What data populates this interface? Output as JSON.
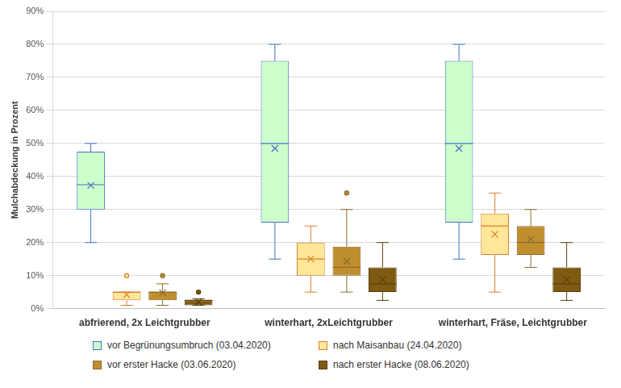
{
  "chart_data": {
    "type": "boxplot",
    "y_label": "Mulchabdeckung in Prozent",
    "categories": [
      "abfrierend, 2x Leichtgrubber",
      "winterhart, 2xLeichtgrubber",
      "winterhart, Fräse, Leichtgrubber"
    ],
    "ylim": [
      0,
      90
    ],
    "yticks": [
      {
        "value": 0,
        "label": "0%"
      },
      {
        "value": 10,
        "label": "10%"
      },
      {
        "value": 20,
        "label": "20%"
      },
      {
        "value": 30,
        "label": "30%"
      },
      {
        "value": 40,
        "label": "40%"
      },
      {
        "value": 50,
        "label": "50%"
      },
      {
        "value": 60,
        "label": "60%"
      },
      {
        "value": 70,
        "label": "70%"
      },
      {
        "value": 80,
        "label": "80%"
      },
      {
        "value": 90,
        "label": "90%"
      }
    ],
    "grid": true,
    "legend": "bottom",
    "series": [
      {
        "name": "vor Begrünungsumbruch (03.04.2020)",
        "color": "#ccffcc",
        "values": [
          {
            "min": 20,
            "q1": 30,
            "median": 37.5,
            "q3": 47.5,
            "max": 50,
            "mean": 37.3,
            "outliers": []
          },
          {
            "min": 15,
            "q1": 26,
            "median": 50,
            "q3": 75,
            "max": 80,
            "mean": 48.5,
            "outliers": []
          },
          {
            "min": 15,
            "q1": 26,
            "median": 50,
            "q3": 75,
            "max": 80,
            "mean": 48.5,
            "outliers": []
          }
        ]
      },
      {
        "name": "nach Maisanbau (24.04.2020)",
        "color": "#ffe699",
        "values": [
          {
            "min": 1,
            "q1": 2.5,
            "median": 5,
            "q3": 5,
            "max": 5,
            "mean": 4.2,
            "outliers": [
              10
            ]
          },
          {
            "min": 5,
            "q1": 10,
            "median": 15,
            "q3": 20,
            "max": 25,
            "mean": 15,
            "outliers": []
          },
          {
            "min": 5,
            "q1": 16.25,
            "median": 25,
            "q3": 28.75,
            "max": 35,
            "mean": 22.5,
            "outliers": []
          }
        ]
      },
      {
        "name": "vor erster Hacke (03.06.2020)",
        "color": "#bf8f2e",
        "values": [
          {
            "min": 1,
            "q1": 2.5,
            "median": 5,
            "q3": 5,
            "max": 7.5,
            "mean": 4.8,
            "outliers": [
              10
            ]
          },
          {
            "min": 5,
            "q1": 10,
            "median": 12.5,
            "q3": 18.75,
            "max": 30,
            "mean": 14.3,
            "outliers": [
              35
            ]
          },
          {
            "min": 12.5,
            "q1": 16.25,
            "median": 20,
            "q3": 25,
            "max": 30,
            "mean": 21,
            "outliers": []
          }
        ]
      },
      {
        "name": "nach erster Hacke (08.06.2020)",
        "color": "#7f5a12",
        "values": [
          {
            "min": 1,
            "q1": 1,
            "median": 2.5,
            "q3": 2.5,
            "max": 3,
            "mean": 2,
            "outliers": [
              5
            ]
          },
          {
            "min": 2.5,
            "q1": 5,
            "median": 7.5,
            "q3": 12.5,
            "max": 20,
            "mean": 8.8,
            "outliers": []
          },
          {
            "min": 2.5,
            "q1": 5,
            "median": 7.5,
            "q3": 12.5,
            "max": 20,
            "mean": 8.8,
            "outliers": []
          }
        ]
      }
    ]
  }
}
